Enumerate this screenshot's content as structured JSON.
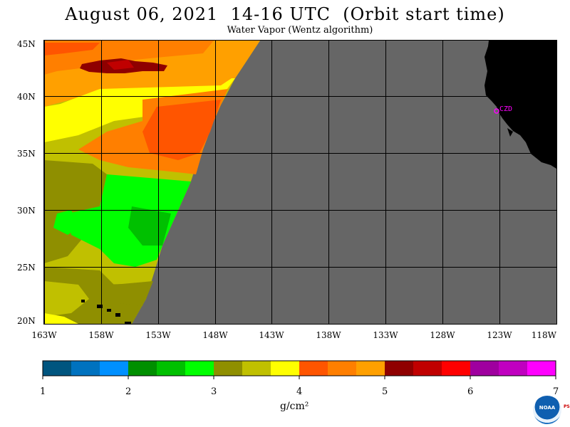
{
  "title": "August 06, 2021  14-16 UTC  (Orbit start time)",
  "subtitle": "Water Vapor (Wentz algorithm)",
  "lat_labels": [
    "45N",
    "40N",
    "35N",
    "30N",
    "25N",
    "20N"
  ],
  "lon_labels": [
    "163W",
    "158W",
    "153W",
    "148W",
    "143W",
    "138W",
    "133W",
    "128W",
    "123W",
    "118W"
  ],
  "colorbar": {
    "colors": [
      "#00557f",
      "#0072bf",
      "#0090ff",
      "#008f00",
      "#00c000",
      "#00ff00",
      "#8f8f00",
      "#c0c000",
      "#ffff00",
      "#ff5500",
      "#ff7f00",
      "#ffa000",
      "#8f0000",
      "#c00000",
      "#ff0000",
      "#9f009f",
      "#c000c0",
      "#ff00ff"
    ],
    "ticks": [
      "1",
      "2",
      "3",
      "4",
      "5",
      "6",
      "7"
    ],
    "unit": "g/cm²"
  },
  "marker": {
    "label": "CZD",
    "color": "#ff00ff"
  },
  "map_colors": {
    "no_data": "#666666",
    "land": "#000000",
    "grid": "#000000"
  },
  "logo": {
    "text": "NOAA",
    "side_text": "PSL"
  }
}
